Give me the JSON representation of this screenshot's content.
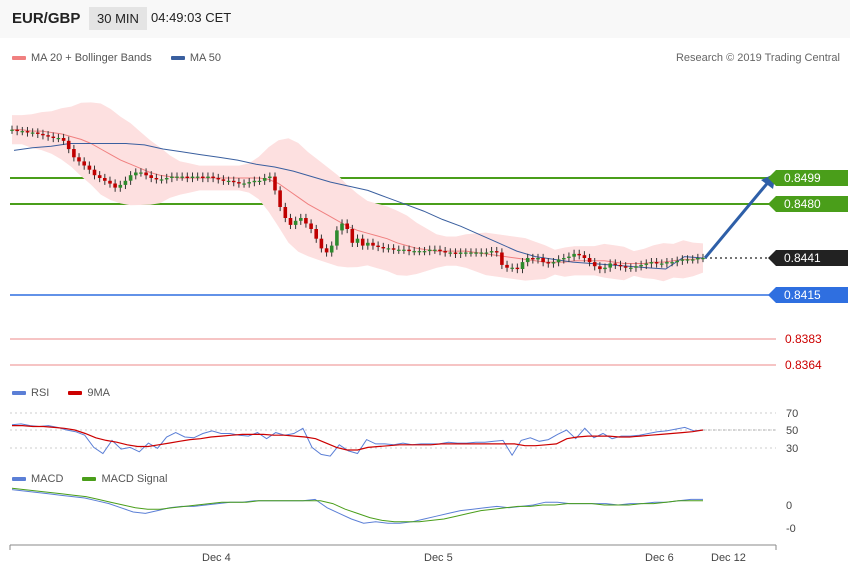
{
  "header": {
    "pair": "EUR/GBP",
    "timeframe": "30 MIN",
    "time": "04:49:03 CET"
  },
  "legend_main": [
    {
      "label": "MA 20 + Bollinger Bands",
      "color": "#f08080"
    },
    {
      "label": "MA 50",
      "color": "#3a5f9f"
    }
  ],
  "credit": "Research © 2019 Trading Central",
  "levels": [
    {
      "label": "0.8499",
      "color": "#4a9e1a",
      "style": "box"
    },
    {
      "label": "0.8480",
      "color": "#4a9e1a",
      "style": "box"
    },
    {
      "label": "0.8441",
      "color": "#222222",
      "style": "box"
    },
    {
      "label": "0.8415",
      "color": "#2f6fe0",
      "style": "box"
    },
    {
      "label": "0.8383",
      "color": "#cc0000",
      "style": "plain"
    },
    {
      "label": "0.8364",
      "color": "#cc0000",
      "style": "plain"
    }
  ],
  "legend_rsi": [
    {
      "label": "RSI",
      "color": "#5b7fd6"
    },
    {
      "label": "9MA",
      "color": "#cc0000"
    }
  ],
  "rsi_ticks": [
    "70",
    "50",
    "30"
  ],
  "legend_macd": [
    {
      "label": "MACD",
      "color": "#5b7fd6"
    },
    {
      "label": "MACD Signal",
      "color": "#4a9e1a"
    }
  ],
  "macd_ticks": [
    "0",
    "-0"
  ],
  "x_ticks": [
    "Dec 4",
    "Dec 5",
    "Dec 6",
    "Dec 12"
  ],
  "chart_data": {
    "type": "candlestick",
    "pair": "EUR/GBP",
    "timeframe": "30 MIN",
    "price_axis": {
      "min": 0.8355,
      "max": 0.8545
    },
    "close": [
      0.8534,
      0.8533,
      0.8533,
      0.8532,
      0.8532,
      0.8531,
      0.853,
      0.8529,
      0.8528,
      0.8528,
      0.8526,
      0.852,
      0.8514,
      0.8511,
      0.8508,
      0.8505,
      0.8501,
      0.8499,
      0.8497,
      0.8495,
      0.8492,
      0.8494,
      0.8497,
      0.8501,
      0.8503,
      0.8503,
      0.8501,
      0.8499,
      0.8498,
      0.8498,
      0.8499,
      0.85,
      0.85,
      0.85,
      0.8499,
      0.85,
      0.85,
      0.8499,
      0.85,
      0.8499,
      0.8498,
      0.8497,
      0.8497,
      0.8496,
      0.8495,
      0.8495,
      0.8496,
      0.8497,
      0.8497,
      0.8499,
      0.85,
      0.849,
      0.8478,
      0.847,
      0.8465,
      0.8468,
      0.847,
      0.8466,
      0.8462,
      0.8455,
      0.8448,
      0.8445,
      0.845,
      0.8461,
      0.8466,
      0.8462,
      0.8452,
      0.8455,
      0.845,
      0.8452,
      0.845,
      0.8449,
      0.8448,
      0.8448,
      0.8447,
      0.8447,
      0.8447,
      0.8446,
      0.8446,
      0.8446,
      0.8446,
      0.8447,
      0.8447,
      0.8446,
      0.8445,
      0.8445,
      0.8444,
      0.8445,
      0.8445,
      0.8445,
      0.8445,
      0.8445,
      0.8445,
      0.8446,
      0.8445,
      0.8436,
      0.8434,
      0.8434,
      0.8433,
      0.8438,
      0.8441,
      0.844,
      0.8441,
      0.8438,
      0.8437,
      0.8438,
      0.844,
      0.8441,
      0.8442,
      0.8444,
      0.8443,
      0.8441,
      0.8438,
      0.8435,
      0.8433,
      0.8434,
      0.8437,
      0.8436,
      0.8435,
      0.8434,
      0.8434,
      0.8435,
      0.8436,
      0.8437,
      0.8438,
      0.8437,
      0.8437,
      0.8438,
      0.8438,
      0.8439,
      0.844,
      0.844,
      0.844,
      0.8441,
      0.8441
    ],
    "series": [
      {
        "name": "MA 20 + Bollinger Bands",
        "values": [
          0.8534,
          0.8534,
          0.8533,
          0.8533,
          0.8532,
          0.8531,
          0.8529,
          0.8527,
          0.8524,
          0.852,
          0.8516,
          0.8512,
          0.8509,
          0.8506,
          0.8503,
          0.8501,
          0.85,
          0.8499,
          0.8499,
          0.8499,
          0.8499,
          0.8499,
          0.8499,
          0.8499,
          0.8499,
          0.8499,
          0.8498,
          0.8495,
          0.849,
          0.8485,
          0.848,
          0.8476,
          0.8472,
          0.8468,
          0.8464,
          0.8461,
          0.8459,
          0.8457,
          0.8455,
          0.8452,
          0.845,
          0.8448,
          0.8447,
          0.8446,
          0.8446,
          0.8446,
          0.8446,
          0.8445,
          0.8444,
          0.8443,
          0.8442,
          0.8441,
          0.844,
          0.8439,
          0.8438,
          0.8438,
          0.8438,
          0.8439,
          0.8439,
          0.8439,
          0.8439,
          0.8438,
          0.8437,
          0.8437,
          0.8437,
          0.8438,
          0.8438,
          0.8439,
          0.844,
          0.844,
          0.8441
        ]
      },
      {
        "name": "MA 50",
        "values": [
          0.8519,
          0.8521,
          0.8522,
          0.8524,
          0.8524,
          0.8524,
          0.8524,
          0.8523,
          0.852,
          0.8518,
          0.8516,
          0.8514,
          0.8512,
          0.8509,
          0.8507,
          0.8504,
          0.85,
          0.8496,
          0.8493,
          0.849,
          0.8485,
          0.848,
          0.8475,
          0.8469,
          0.8464,
          0.8458,
          0.8452,
          0.8446,
          0.8442,
          0.844,
          0.8438,
          0.8437,
          0.8436,
          0.8435,
          0.8434,
          0.8433,
          0.8442,
          0.8441
        ]
      },
      {
        "name": "RSI",
        "values": [
          56,
          57,
          55,
          54,
          55,
          53,
          50,
          48,
          44,
          30,
          23,
          38,
          28,
          30,
          25,
          35,
          29,
          42,
          47,
          42,
          41,
          46,
          49,
          46,
          46,
          44,
          43,
          47,
          40,
          47,
          44,
          46,
          52,
          30,
          22,
          20,
          33,
          26,
          23,
          39,
          34,
          34,
          33,
          35,
          33,
          34,
          34,
          34,
          36,
          35,
          35,
          36,
          36,
          37,
          38,
          21,
          38,
          41,
          37,
          39,
          45,
          50,
          40,
          52,
          41,
          46,
          40,
          43,
          43,
          44,
          46,
          48,
          49,
          51,
          53,
          49,
          50
        ]
      },
      {
        "name": "9MA",
        "values": [
          55,
          55,
          54,
          54,
          53,
          52,
          50,
          46,
          41,
          38,
          36,
          33,
          31,
          31,
          33,
          35,
          37,
          39,
          40,
          42,
          43,
          44,
          45,
          45,
          45,
          44,
          44,
          43,
          42,
          40,
          35,
          30,
          27,
          27,
          30,
          31,
          32,
          33,
          33,
          33,
          33,
          34,
          34,
          34,
          34,
          34,
          34,
          34,
          34,
          32,
          32,
          33,
          34,
          40,
          42,
          43,
          43,
          43,
          42,
          42,
          43,
          44,
          45,
          46,
          47,
          48,
          50
        ]
      },
      {
        "name": "MACD",
        "values": [
          0.0011,
          0.001,
          0.0009,
          0.0008,
          0.0007,
          0.0006,
          0.0005,
          0.0003,
          0.0001,
          -0.0002,
          -0.0005,
          -0.0006,
          -0.0004,
          -0.0002,
          -0.0001,
          -0.0001,
          0.0,
          0.0001,
          0.0002,
          0.0002,
          0.0003,
          0.0003,
          0.0003,
          0.0003,
          0.0003,
          0.0004,
          -0.0002,
          -0.0006,
          -0.001,
          -0.0013,
          -0.0012,
          -0.0013,
          -0.0013,
          -0.0012,
          -0.001,
          -0.0008,
          -0.0006,
          -0.0004,
          -0.0003,
          -0.0002,
          -0.0001,
          -0.0002,
          -0.0001,
          0.0,
          0.0002,
          0.0002,
          0.0001,
          0.0001,
          0.0001,
          0.0001,
          0.0,
          0.0001,
          0.0001,
          0.0002,
          0.0002,
          0.0003,
          0.0004,
          0.0004
        ]
      },
      {
        "name": "MACD Signal",
        "values": [
          0.0012,
          0.0011,
          0.001,
          0.0009,
          0.0008,
          0.0007,
          0.0006,
          0.0004,
          0.0002,
          0.0,
          -0.0002,
          -0.0003,
          -0.0003,
          -0.0002,
          -0.0001,
          0.0,
          0.0001,
          0.0002,
          0.0002,
          0.0002,
          0.0003,
          0.0003,
          0.0003,
          0.0003,
          0.0003,
          0.0003,
          0.0001,
          -0.0003,
          -0.0006,
          -0.0009,
          -0.0011,
          -0.0012,
          -0.0012,
          -0.0012,
          -0.0011,
          -0.001,
          -0.0008,
          -0.0006,
          -0.0004,
          -0.0003,
          -0.0002,
          -0.0001,
          -0.0001,
          0.0,
          0.0,
          0.0001,
          0.0001,
          0.0001,
          0.0,
          0.0,
          0.0,
          0.0001,
          0.0001,
          0.0002,
          0.0003,
          0.0003,
          0.0003
        ]
      }
    ],
    "projection": {
      "from": 0.8441,
      "to": 0.8499
    }
  }
}
